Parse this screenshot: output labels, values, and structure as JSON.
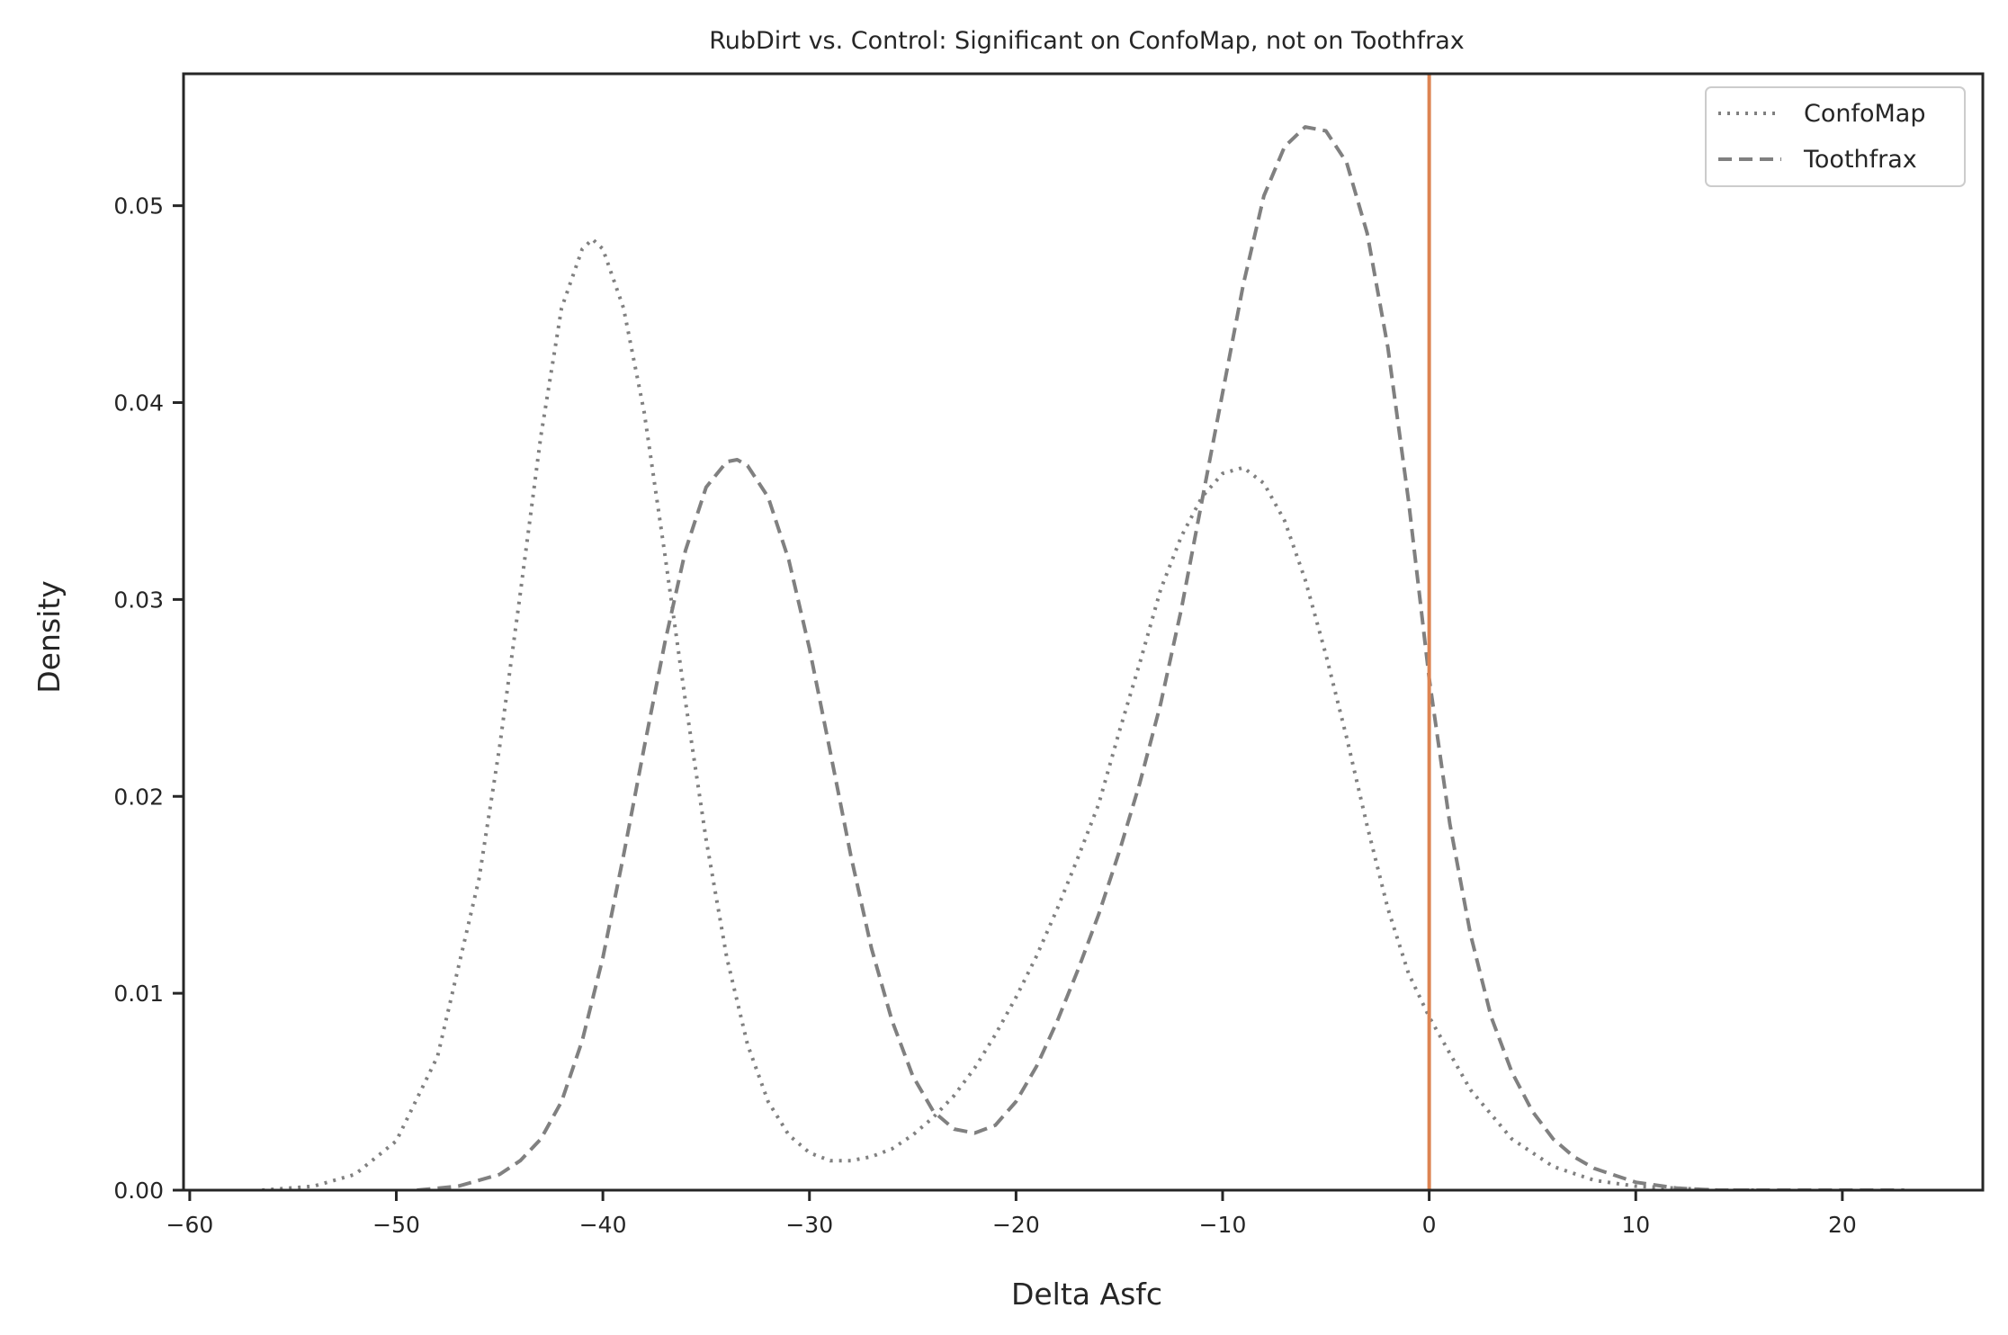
{
  "chart_data": {
    "type": "line",
    "title": "RubDirt vs. Control: Significant on ConfoMap, not on Toothfrax",
    "xlabel": "Delta Asfc",
    "ylabel": "Density",
    "xlim": [
      -60.3,
      26.8
    ],
    "ylim": [
      0,
      0.0567
    ],
    "x_ticks": [
      -60,
      -50,
      -40,
      -30,
      -20,
      -10,
      0,
      10,
      20
    ],
    "x_tick_labels": [
      "−60",
      "−50",
      "−40",
      "−30",
      "−20",
      "−10",
      "0",
      "10",
      "20"
    ],
    "y_ticks": [
      0.0,
      0.01,
      0.02,
      0.03,
      0.04,
      0.05
    ],
    "y_tick_labels": [
      "0.00",
      "0.01",
      "0.02",
      "0.03",
      "0.04",
      "0.05"
    ],
    "grid": false,
    "legend_position": "top-right",
    "reference_line": {
      "x": 0,
      "color": "#dd8452"
    },
    "series": [
      {
        "name": "ConfoMap",
        "style": "dotted",
        "color": "#808080",
        "x": [
          -56.5,
          -54,
          -52,
          -50,
          -48,
          -46,
          -45,
          -44,
          -43,
          -42,
          -41,
          -40.5,
          -40,
          -39,
          -38,
          -37,
          -36,
          -35,
          -34,
          -33,
          -32,
          -31,
          -30,
          -29,
          -28,
          -27,
          -26,
          -25,
          -24,
          -23,
          -22,
          -21,
          -20,
          -19,
          -18,
          -17,
          -16,
          -15,
          -14,
          -13,
          -12,
          -11,
          -10,
          -9,
          -8,
          -7,
          -6,
          -5,
          -4,
          -3,
          -2,
          -1,
          0,
          2,
          4,
          6,
          8,
          10,
          12,
          14,
          16
        ],
        "y": [
          0.0,
          0.0002,
          0.0008,
          0.0025,
          0.0068,
          0.0158,
          0.0225,
          0.0303,
          0.0383,
          0.0448,
          0.0478,
          0.0483,
          0.0478,
          0.0448,
          0.0395,
          0.0323,
          0.0248,
          0.0178,
          0.0118,
          0.0074,
          0.0045,
          0.0028,
          0.0019,
          0.0015,
          0.0015,
          0.0017,
          0.0021,
          0.0028,
          0.0037,
          0.0048,
          0.0062,
          0.0079,
          0.0098,
          0.0119,
          0.0143,
          0.0169,
          0.0196,
          0.0233,
          0.0268,
          0.0305,
          0.0332,
          0.0352,
          0.0364,
          0.0367,
          0.0359,
          0.034,
          0.031,
          0.0272,
          0.023,
          0.0185,
          0.0143,
          0.011,
          0.0088,
          0.0051,
          0.0026,
          0.0012,
          0.0005,
          0.0002,
          0.0001,
          0.0,
          0.0
        ]
      },
      {
        "name": "Toothfrax",
        "style": "dashed",
        "color": "#808080",
        "x": [
          -49,
          -47,
          -45,
          -44,
          -43,
          -42,
          -41,
          -40,
          -39,
          -38,
          -37,
          -36,
          -35,
          -34,
          -33.5,
          -33,
          -32,
          -31,
          -30,
          -29,
          -28,
          -27,
          -26,
          -25,
          -24,
          -23,
          -22,
          -21,
          -20,
          -19,
          -18,
          -17,
          -16,
          -15,
          -14,
          -13,
          -12,
          -11,
          -10,
          -9,
          -8,
          -7,
          -6,
          -5,
          -4,
          -3,
          -2,
          -1,
          0,
          1,
          2,
          3,
          4,
          5,
          6,
          7,
          8,
          10,
          12,
          14,
          17,
          20,
          23
        ],
        "y": [
          0.0,
          0.0002,
          0.0008,
          0.0015,
          0.0026,
          0.0045,
          0.0076,
          0.0118,
          0.017,
          0.0225,
          0.0278,
          0.0325,
          0.0357,
          0.037,
          0.0371,
          0.0368,
          0.0352,
          0.032,
          0.0275,
          0.0223,
          0.017,
          0.0123,
          0.0086,
          0.0058,
          0.004,
          0.0031,
          0.0029,
          0.0033,
          0.0045,
          0.0063,
          0.0086,
          0.0112,
          0.014,
          0.0172,
          0.0207,
          0.0247,
          0.0295,
          0.035,
          0.0405,
          0.046,
          0.0505,
          0.053,
          0.054,
          0.0538,
          0.0522,
          0.0486,
          0.0428,
          0.035,
          0.026,
          0.0186,
          0.013,
          0.0088,
          0.006,
          0.004,
          0.0026,
          0.0017,
          0.0011,
          0.0004,
          0.0001,
          0.0,
          0.0,
          0.0,
          0.0
        ]
      }
    ]
  }
}
